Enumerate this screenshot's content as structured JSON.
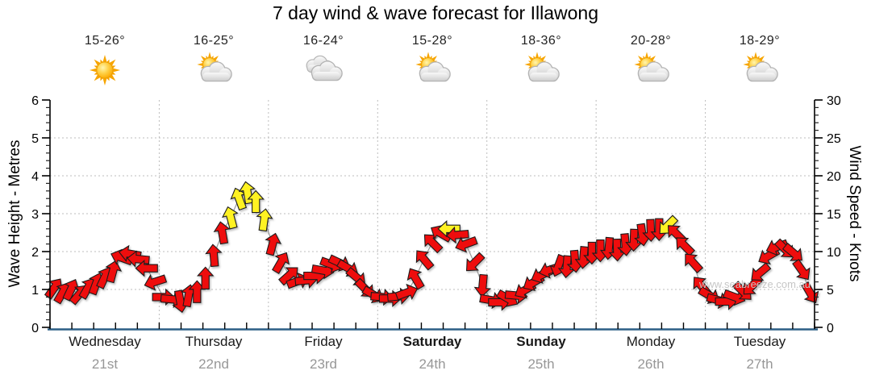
{
  "title": "7 day wind & wave forecast for Illawong",
  "watermark": "www.seabreeze.com.au",
  "axes": {
    "left_label": "Wave Height - Metres",
    "right_label": "Wind Speed - Knots",
    "left_ticks": [
      0,
      1,
      2,
      3,
      4,
      5,
      6
    ],
    "right_ticks": [
      0,
      5,
      10,
      15,
      20,
      25,
      30
    ]
  },
  "days": [
    {
      "name": "Wednesday",
      "date": "21st",
      "temp": "15-26°",
      "icon": "sunny",
      "bold": false
    },
    {
      "name": "Thursday",
      "date": "22nd",
      "temp": "16-25°",
      "icon": "partly-cloudy",
      "bold": false
    },
    {
      "name": "Friday",
      "date": "23rd",
      "temp": "16-24°",
      "icon": "cloudy",
      "bold": false
    },
    {
      "name": "Saturday",
      "date": "24th",
      "temp": "15-28°",
      "icon": "partly-cloudy",
      "bold": true
    },
    {
      "name": "Sunday",
      "date": "25th",
      "temp": "18-36°",
      "icon": "partly-cloudy",
      "bold": true
    },
    {
      "name": "Monday",
      "date": "26th",
      "temp": "20-28°",
      "icon": "partly-cloudy",
      "bold": false
    },
    {
      "name": "Tuesday",
      "date": "27th",
      "temp": "18-29°",
      "icon": "partly-cloudy",
      "bold": false
    }
  ],
  "chart_data": {
    "type": "wind-arrows",
    "title": "7 day wind & wave forecast for Illawong",
    "x_categories": [
      "Wednesday 21st",
      "Thursday 22nd",
      "Friday 23rd",
      "Saturday 24th",
      "Sunday 25th",
      "Monday 26th",
      "Tuesday 27th"
    ],
    "y_left": {
      "label": "Wave Height - Metres",
      "range": [
        0,
        6
      ]
    },
    "y_right": {
      "label": "Wind Speed - Knots",
      "range": [
        0,
        30
      ]
    },
    "grid": "dotted, horizontal every 1 m / 5 kn, vertical at day boundaries",
    "samples_per_day": 13,
    "dir_convention": "degrees the arrow points on screen, 0 = up, clockwise",
    "arrow_colors": {
      "normal": "#ee0f0f",
      "strong": "#fff224",
      "strong_threshold_knots": 13
    },
    "series": [
      {
        "day": "Wednesday",
        "knots": [
          5.2,
          4.6,
          5.0,
          4.4,
          5.2,
          5.8,
          6.6,
          7.4,
          9.2,
          9.7,
          9.0,
          7.8,
          6.0
        ],
        "dir_deg": [
          35,
          30,
          25,
          40,
          30,
          20,
          25,
          15,
          290,
          280,
          275,
          270,
          252
        ]
      },
      {
        "day": "Thursday",
        "knots": [
          4.0,
          3.7,
          3.4,
          4.2,
          4.7,
          6.5,
          9.5,
          12.5,
          14.5,
          17.0,
          17.8,
          16.6,
          14.2
        ],
        "dir_deg": [
          90,
          95,
          170,
          10,
          0,
          0,
          355,
          350,
          345,
          340,
          350,
          0,
          8
        ]
      },
      {
        "day": "Friday",
        "knots": [
          11.0,
          8.6,
          6.9,
          6.1,
          6.2,
          6.8,
          7.5,
          8.3,
          8.5,
          7.8,
          6.6,
          5.1,
          4.3
        ],
        "dir_deg": [
          15,
          30,
          48,
          70,
          85,
          90,
          100,
          110,
          115,
          120,
          130,
          135,
          120
        ]
      },
      {
        "day": "Saturday",
        "knots": [
          4.0,
          3.8,
          4.1,
          4.6,
          6.5,
          9.0,
          11.2,
          12.4,
          13.0,
          12.2,
          11.0,
          8.5,
          5.5
        ],
        "dir_deg": [
          95,
          90,
          85,
          70,
          330,
          320,
          315,
          300,
          270,
          265,
          250,
          225,
          185
        ]
      },
      {
        "day": "Sunday",
        "knots": [
          3.6,
          3.3,
          3.8,
          4.2,
          4.9,
          5.9,
          6.9,
          7.6,
          8.1,
          8.0,
          8.7,
          9.2,
          9.8
        ],
        "dir_deg": [
          100,
          90,
          120,
          95,
          240,
          240,
          245,
          252,
          200,
          185,
          175,
          185,
          180
        ]
      },
      {
        "day": "Monday",
        "knots": [
          10.1,
          10.4,
          10.2,
          10.9,
          11.5,
          12.2,
          12.8,
          12.9,
          13.4,
          12.4,
          10.8,
          8.6,
          5.5
        ],
        "dir_deg": [
          180,
          185,
          178,
          175,
          182,
          172,
          178,
          180,
          225,
          315,
          315,
          318,
          320
        ]
      },
      {
        "day": "Tuesday",
        "knots": [
          4.2,
          3.6,
          3.4,
          4.0,
          4.7,
          5.4,
          7.2,
          9.4,
          10.6,
          10.3,
          9.8,
          7.5,
          4.5
        ],
        "dir_deg": [
          120,
          105,
          90,
          110,
          135,
          225,
          230,
          240,
          250,
          135,
          130,
          145,
          150
        ]
      }
    ]
  },
  "style_colors": {
    "axis_bottom": "#2c5e85",
    "grid": "#bdbdbd",
    "connector": "#9a9a9a",
    "tick_text": "#000000"
  }
}
